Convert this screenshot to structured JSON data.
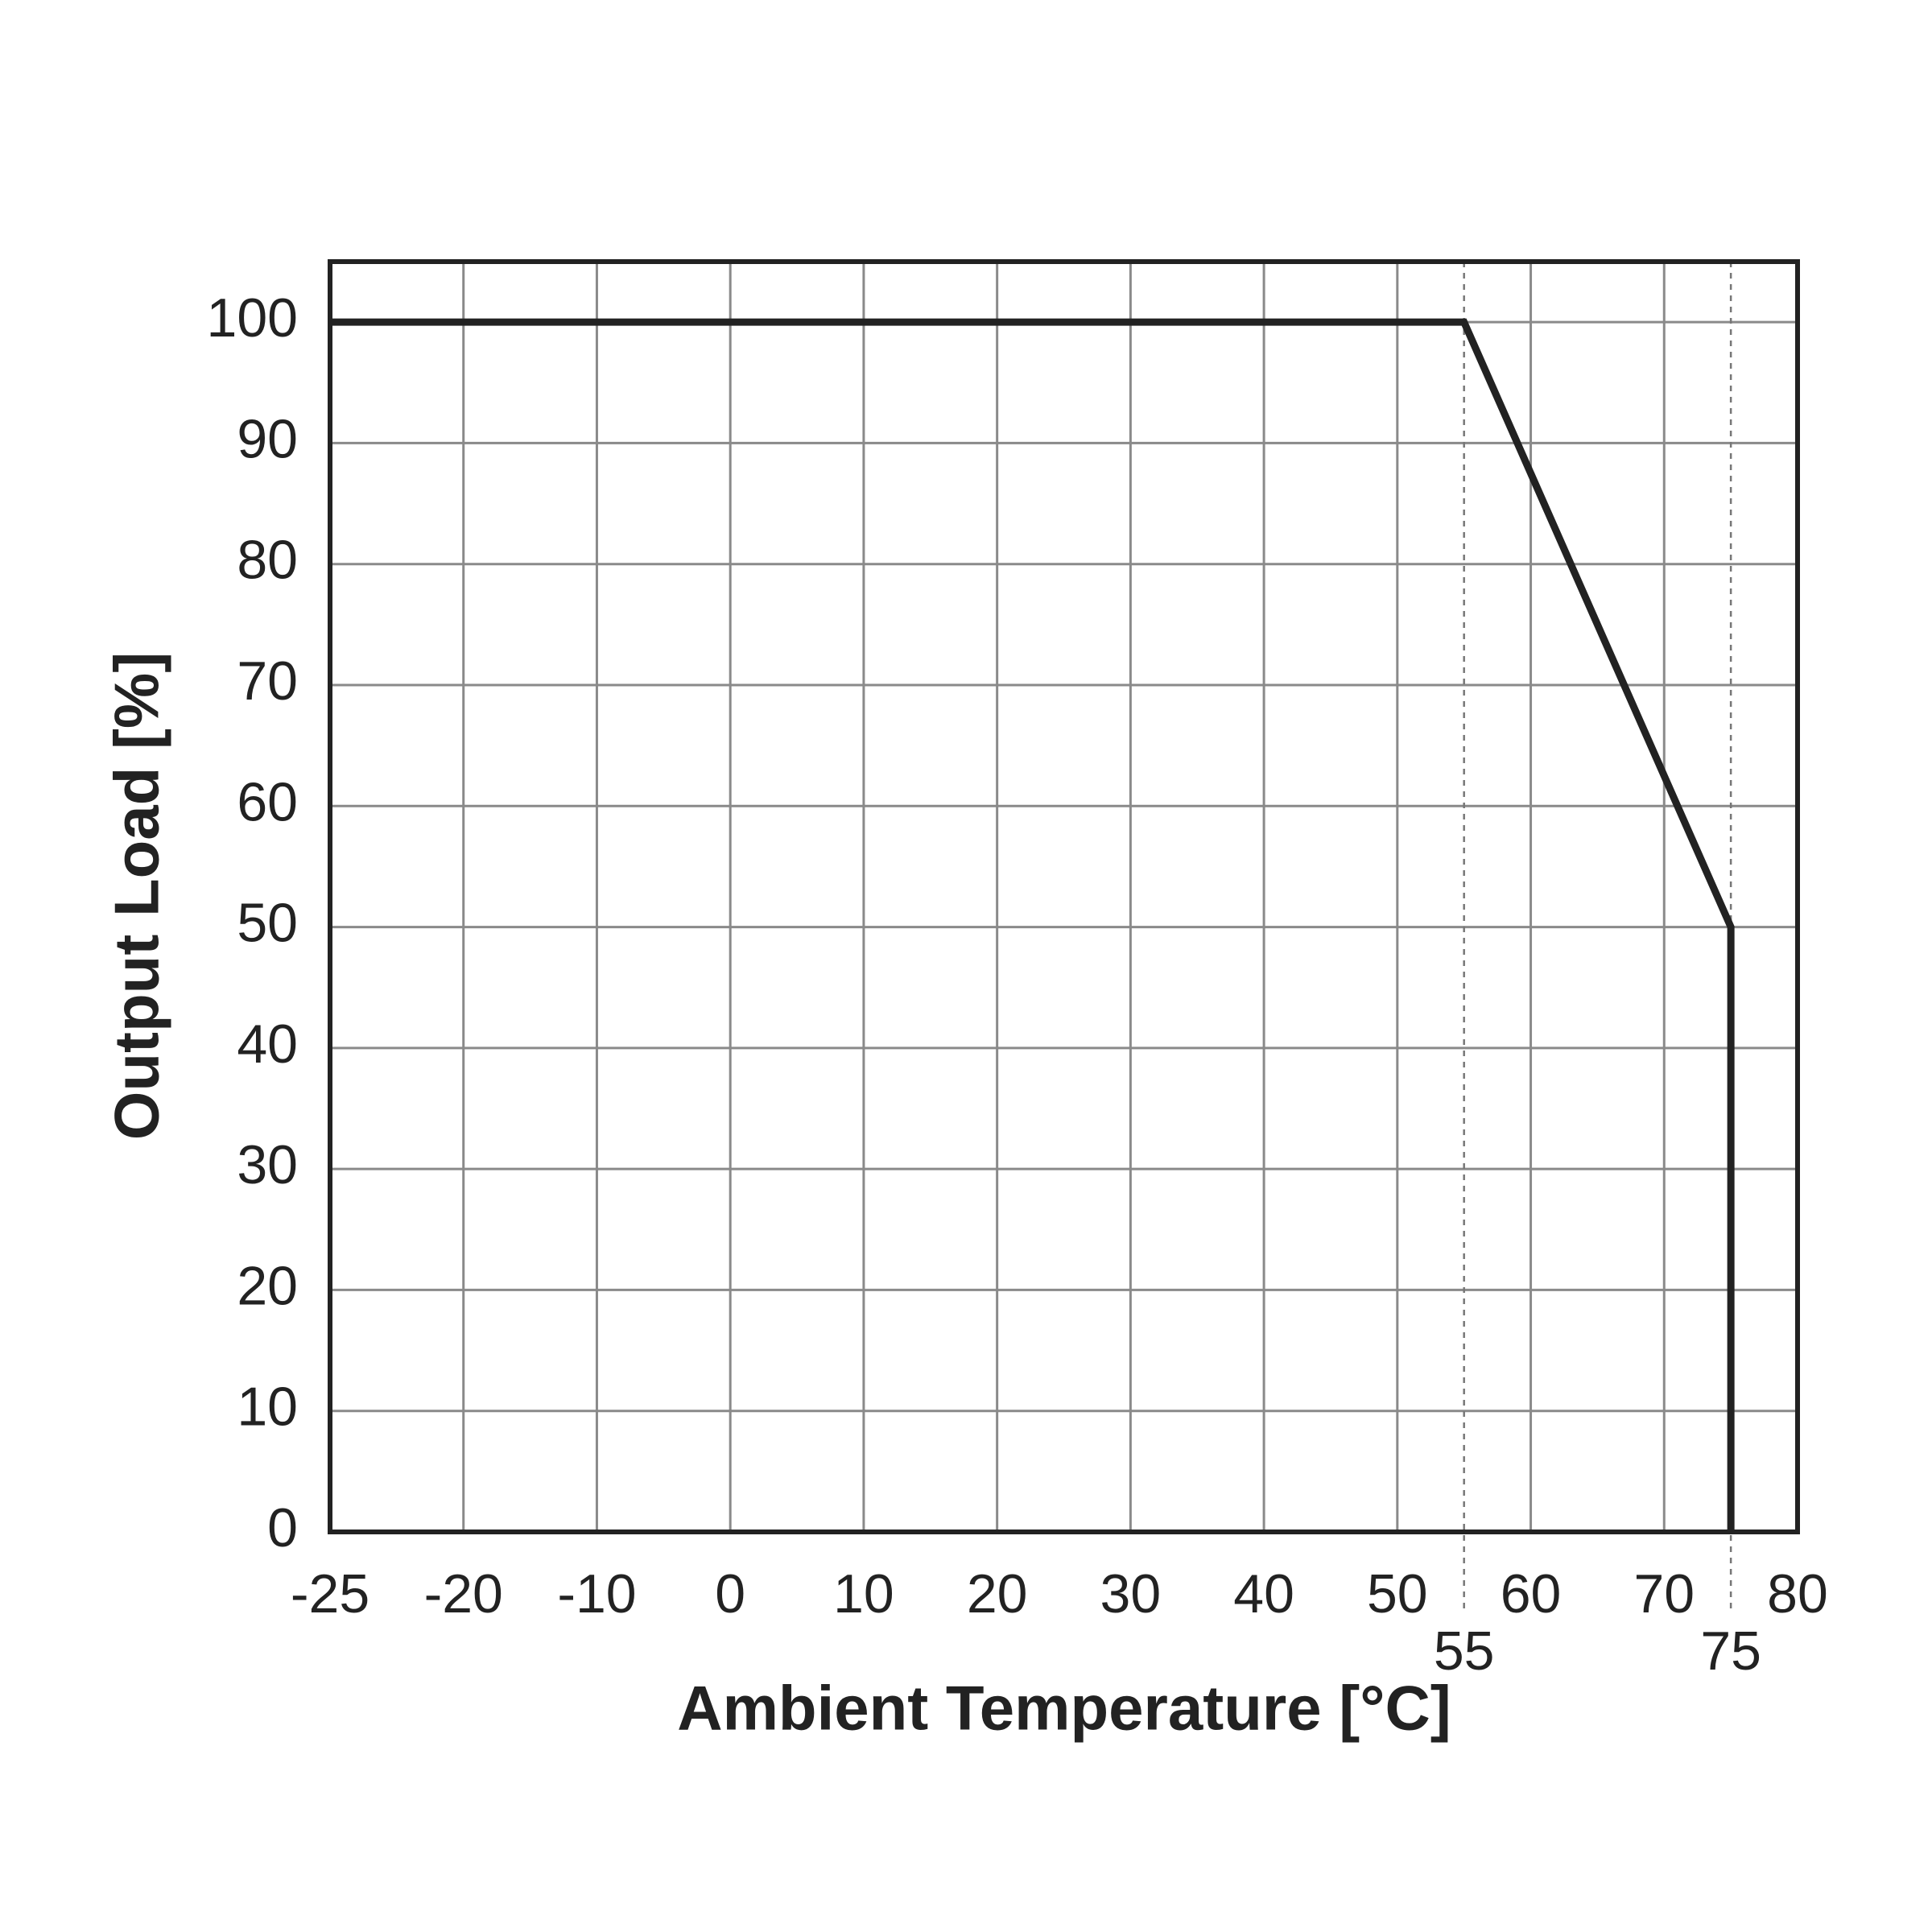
{
  "chart_data": {
    "type": "line",
    "x_label": "Ambient Temperature [°C]",
    "y_label": "Output Load [%]",
    "x": [
      -25,
      55,
      75,
      75
    ],
    "series": [
      {
        "color": "#222222",
        "values": [
          100,
          100,
          50,
          0
        ]
      }
    ],
    "xlim": [
      -25,
      80
    ],
    "xticks": [
      -25,
      -20,
      -10,
      0,
      10,
      20,
      30,
      40,
      50,
      60,
      70,
      80
    ],
    "ylim": [
      0,
      105
    ],
    "yticks": [
      0,
      10,
      20,
      30,
      40,
      50,
      60,
      70,
      80,
      90,
      100
    ],
    "x_markers": [
      55,
      75
    ],
    "grid": true
  }
}
